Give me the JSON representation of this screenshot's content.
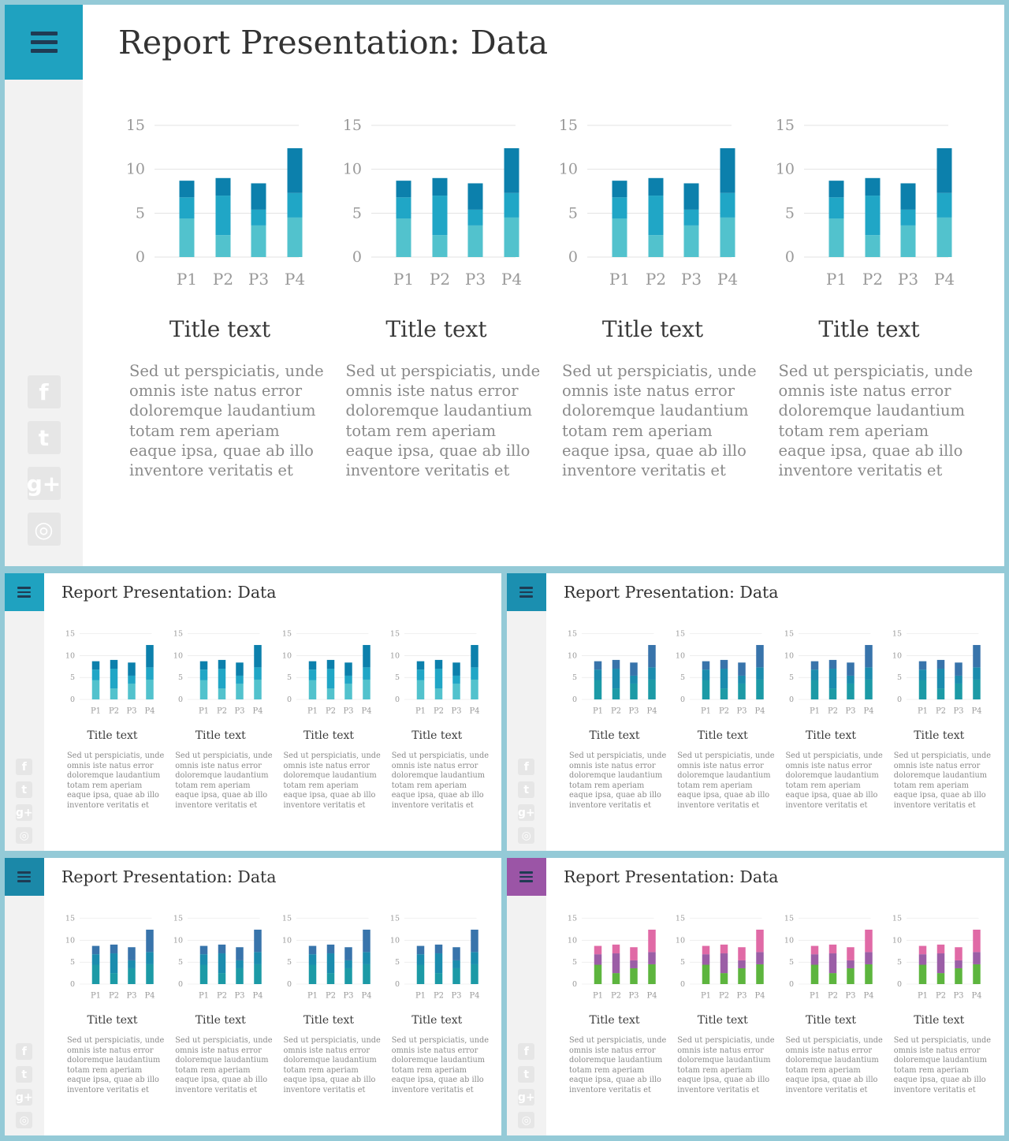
{
  "slides": [
    {
      "title": "Report Presentation: Data",
      "menu_color": "#1fa2c0",
      "series_colors": [
        "#52c2cd",
        "#20a6c6",
        "#0c80ac"
      ],
      "panels": [
        {
          "title": "Title text",
          "body": "Sed ut perspiciatis, unde\nomnis  iste natus error\ndoloremque laudantium\ntotam rem aperiam\neaque ipsa, quae ab illo\ninventore veritatis et"
        },
        {
          "title": "Title text",
          "body": "Sed ut perspiciatis, unde\nomnis  iste natus error\ndoloremque laudantium\ntotam rem aperiam\neaque ipsa, quae ab illo\ninventore veritatis et"
        },
        {
          "title": "Title text",
          "body": "Sed ut perspiciatis, unde\nomnis  iste natus error\ndoloremque laudantium\ntotam rem aperiam\neaque ipsa, quae ab illo\ninventore veritatis et"
        },
        {
          "title": "Title text",
          "body": "Sed ut perspiciatis, unde\nomnis  iste natus error\ndoloremque laudantium\ntotam rem aperiam\neaque ipsa, quae ab illo\ninventore veritatis et"
        }
      ]
    },
    {
      "title": "Report Presentation: Data",
      "menu_color": "#1fa2c0",
      "series_colors": [
        "#52c2cd",
        "#20a6c6",
        "#0c80ac"
      ],
      "panels": [
        {
          "title": "Title text",
          "body": "Sed ut perspiciatis, unde\nomnis  iste natus error\ndoloremque laudantium\ntotam rem aperiam\neaque ipsa, quae ab illo\ninventore veritatis et"
        },
        {
          "title": "Title text",
          "body": "Sed ut perspiciatis, unde\nomnis  iste natus error\ndoloremque laudantium\ntotam rem aperiam\neaque ipsa, quae ab illo\ninventore veritatis et"
        },
        {
          "title": "Title text",
          "body": "Sed ut perspiciatis, unde\nomnis  iste natus error\ndoloremque laudantium\ntotam rem aperiam\neaque ipsa, quae ab illo\ninventore veritatis et"
        },
        {
          "title": "Title text",
          "body": "Sed ut perspiciatis, unde\nomnis  iste natus error\ndoloremque laudantium\ntotam rem aperiam\neaque ipsa, quae ab illo\ninventore veritatis et"
        }
      ]
    },
    {
      "title": "Report Presentation: Data",
      "menu_color": "#1b8fb0",
      "series_colors": [
        "#1c9aa6",
        "#1b8cae",
        "#3874ab"
      ],
      "panels": [
        {
          "title": "Title text",
          "body": "Sed ut perspiciatis, unde\nomnis  iste natus error\ndoloremque laudantium\ntotam rem aperiam\neaque ipsa, quae ab illo\ninventore veritatis et"
        },
        {
          "title": "Title text",
          "body": "Sed ut perspiciatis, unde\nomnis  iste natus error\ndoloremque laudantium\ntotam rem aperiam\neaque ipsa, quae ab illo\ninventore veritatis et"
        },
        {
          "title": "Title text",
          "body": "Sed ut perspiciatis, unde\nomnis  iste natus error\ndoloremque laudantium\ntotam rem aperiam\neaque ipsa, quae ab illo\ninventore veritatis et"
        },
        {
          "title": "Title text",
          "body": "Sed ut perspiciatis, unde\nomnis  iste natus error\ndoloremque laudantium\ntotam rem aperiam\neaque ipsa, quae ab illo\ninventore veritatis et"
        }
      ]
    },
    {
      "title": "Report Presentation: Data",
      "menu_color": "#1b88a8",
      "series_colors": [
        "#1c9aa6",
        "#1b8cae",
        "#3874ab"
      ],
      "panels": [
        {
          "title": "Title text",
          "body": "Sed ut perspiciatis, unde\nomnis  iste natus error\ndoloremque laudantium\ntotam rem aperiam\neaque ipsa, quae ab illo\ninventore veritatis et"
        },
        {
          "title": "Title text",
          "body": "Sed ut perspiciatis, unde\nomnis  iste natus error\ndoloremque laudantium\ntotam rem aperiam\neaque ipsa, quae ab illo\ninventore veritatis et"
        },
        {
          "title": "Title text",
          "body": "Sed ut perspiciatis, unde\nomnis  iste natus error\ndoloremque laudantium\ntotam rem aperiam\neaque ipsa, quae ab illo\ninventore veritatis et"
        },
        {
          "title": "Title text",
          "body": "Sed ut perspiciatis, unde\nomnis  iste natus error\ndoloremque laudantium\ntotam rem aperiam\neaque ipsa, quae ab illo\ninventore veritatis et"
        }
      ]
    },
    {
      "title": "Report Presentation: Data",
      "menu_color": "#9b55a6",
      "series_colors": [
        "#5db53e",
        "#9b5ea6",
        "#e06aa6"
      ],
      "panels": [
        {
          "title": "Title text",
          "body": "Sed ut perspiciatis, unde\nomnis  iste natus error\ndoloremque laudantium\ntotam rem aperiam\neaque ipsa, quae ab illo\ninventore veritatis et"
        },
        {
          "title": "Title text",
          "body": "Sed ut perspiciatis, unde\nomnis  iste natus error\ndoloremque laudantium\ntotam rem aperiam\neaque ipsa, quae ab illo\ninventore veritatis et"
        },
        {
          "title": "Title text",
          "body": "Sed ut perspiciatis, unde\nomnis  iste natus error\ndoloremque laudantium\ntotam rem aperiam\neaque ipsa, quae ab illo\ninventore veritatis et"
        },
        {
          "title": "Title text",
          "body": "Sed ut perspiciatis, unde\nomnis  iste natus error\ndoloremque laudantium\ntotam rem aperiam\neaque ipsa, quae ab illo\ninventore veritatis et"
        }
      ]
    }
  ],
  "social_icons": [
    {
      "name": "facebook-icon",
      "glyph": "f"
    },
    {
      "name": "twitter-icon",
      "glyph": "t"
    },
    {
      "name": "google-plus-icon",
      "glyph": "g+"
    },
    {
      "name": "instagram-icon",
      "glyph": "◎"
    }
  ],
  "chart_data": {
    "type": "bar",
    "stacked": true,
    "categories": [
      "P1",
      "P2",
      "P3",
      "P4"
    ],
    "series": [
      {
        "values": [
          4.4,
          2.5,
          3.6,
          4.5
        ]
      },
      {
        "values": [
          2.4,
          4.5,
          1.8,
          2.8
        ]
      },
      {
        "values": [
          1.9,
          2.0,
          3.0,
          5.1
        ]
      }
    ],
    "yticks": [
      "15",
      "10",
      "5",
      "0"
    ],
    "ylim": [
      0,
      15
    ],
    "grid": true,
    "xlabel": "",
    "ylabel": ""
  }
}
